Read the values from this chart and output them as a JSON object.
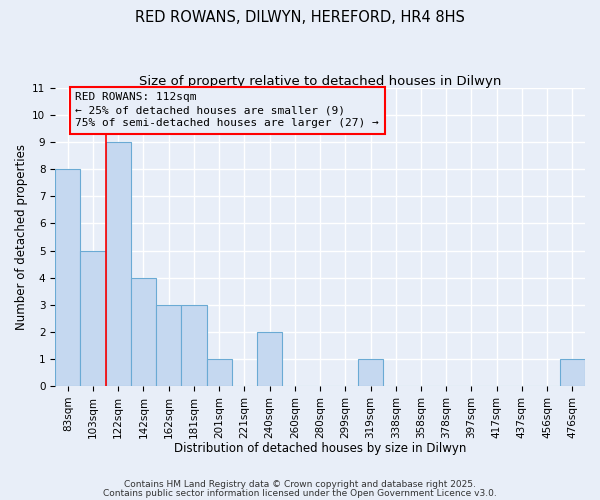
{
  "title": "RED ROWANS, DILWYN, HEREFORD, HR4 8HS",
  "subtitle": "Size of property relative to detached houses in Dilwyn",
  "xlabel": "Distribution of detached houses by size in Dilwyn",
  "ylabel": "Number of detached properties",
  "bar_labels": [
    "83sqm",
    "103sqm",
    "122sqm",
    "142sqm",
    "162sqm",
    "181sqm",
    "201sqm",
    "221sqm",
    "240sqm",
    "260sqm",
    "280sqm",
    "299sqm",
    "319sqm",
    "338sqm",
    "358sqm",
    "378sqm",
    "397sqm",
    "417sqm",
    "437sqm",
    "456sqm",
    "476sqm"
  ],
  "bar_values": [
    8,
    5,
    9,
    4,
    3,
    3,
    1,
    0,
    2,
    0,
    0,
    0,
    1,
    0,
    0,
    0,
    0,
    0,
    0,
    0,
    1
  ],
  "bar_color": "#c5d8f0",
  "bar_edge_color": "#6aaad4",
  "ylim": [
    0,
    11
  ],
  "yticks": [
    0,
    1,
    2,
    3,
    4,
    5,
    6,
    7,
    8,
    9,
    10,
    11
  ],
  "red_line_x": 1.5,
  "annotation_line1": "RED ROWANS: 112sqm",
  "annotation_line2": "← 25% of detached houses are smaller (9)",
  "annotation_line3": "75% of semi-detached houses are larger (27) →",
  "footer_line1": "Contains HM Land Registry data © Crown copyright and database right 2025.",
  "footer_line2": "Contains public sector information licensed under the Open Government Licence v3.0.",
  "background_color": "#e8eef8",
  "grid_color": "#ffffff",
  "title_fontsize": 10.5,
  "subtitle_fontsize": 9.5,
  "axis_label_fontsize": 8.5,
  "tick_fontsize": 7.5,
  "annotation_fontsize": 8,
  "footer_fontsize": 6.5
}
